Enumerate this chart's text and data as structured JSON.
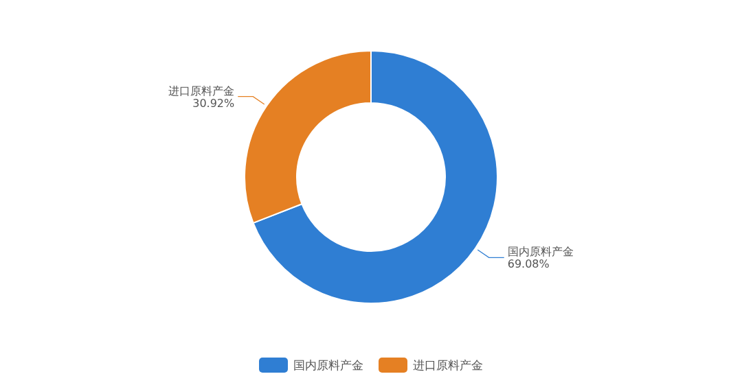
{
  "chart_data": {
    "type": "donut",
    "categories": [
      "国内原料产金",
      "进口原料产金"
    ],
    "values": [
      69.08,
      30.92
    ],
    "colors": [
      "#2f7ed3",
      "#e58023"
    ],
    "value_labels": [
      "69.08%",
      "30.92%"
    ],
    "legend": "bottom"
  }
}
